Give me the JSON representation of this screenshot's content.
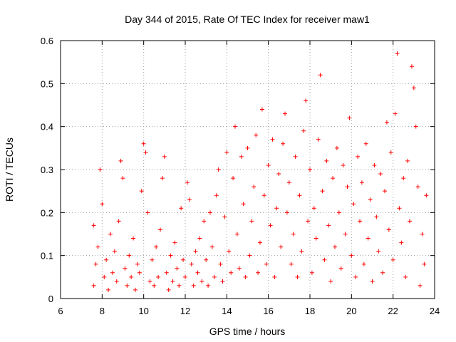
{
  "chart_data": {
    "type": "scatter",
    "title": "Day 344 of 2015, Rate Of TEC Index for receiver maw1",
    "xlabel": "GPS time / hours",
    "ylabel": "ROTI / TECUs",
    "xlim": [
      6,
      24
    ],
    "ylim": [
      0,
      0.6
    ],
    "xticks": [
      "6",
      "8",
      "10",
      "12",
      "14",
      "16",
      "18",
      "20",
      "22",
      "24"
    ],
    "yticks": [
      "0",
      "0.1",
      "0.2",
      "0.3",
      "0.4",
      "0.5",
      "0.6"
    ],
    "grid": true,
    "marker": "+",
    "marker_color": "#ff0000",
    "series": [
      {
        "points": [
          [
            7.6,
            0.03
          ],
          [
            7.6,
            0.17
          ],
          [
            7.7,
            0.08
          ],
          [
            7.8,
            0.12
          ],
          [
            7.9,
            0.3
          ],
          [
            8.0,
            0.22
          ],
          [
            8.1,
            0.05
          ],
          [
            8.2,
            0.09
          ],
          [
            8.3,
            0.02
          ],
          [
            8.4,
            0.15
          ],
          [
            8.5,
            0.06
          ],
          [
            8.6,
            0.11
          ],
          [
            8.7,
            0.04
          ],
          [
            8.8,
            0.18
          ],
          [
            8.9,
            0.32
          ],
          [
            9.0,
            0.28
          ],
          [
            9.1,
            0.07
          ],
          [
            9.2,
            0.03
          ],
          [
            9.3,
            0.1
          ],
          [
            9.4,
            0.05
          ],
          [
            9.5,
            0.14
          ],
          [
            9.6,
            0.02
          ],
          [
            9.7,
            0.08
          ],
          [
            9.8,
            0.06
          ],
          [
            9.9,
            0.25
          ],
          [
            10.0,
            0.36
          ],
          [
            10.1,
            0.34
          ],
          [
            10.2,
            0.2
          ],
          [
            10.3,
            0.04
          ],
          [
            10.4,
            0.09
          ],
          [
            10.5,
            0.03
          ],
          [
            10.6,
            0.12
          ],
          [
            10.7,
            0.05
          ],
          [
            10.8,
            0.16
          ],
          [
            10.9,
            0.28
          ],
          [
            11.0,
            0.33
          ],
          [
            11.1,
            0.06
          ],
          [
            11.2,
            0.02
          ],
          [
            11.3,
            0.1
          ],
          [
            11.4,
            0.04
          ],
          [
            11.5,
            0.13
          ],
          [
            11.6,
            0.07
          ],
          [
            11.7,
            0.03
          ],
          [
            11.8,
            0.21
          ],
          [
            11.9,
            0.09
          ],
          [
            12.0,
            0.05
          ],
          [
            12.1,
            0.27
          ],
          [
            12.2,
            0.23
          ],
          [
            12.3,
            0.08
          ],
          [
            12.4,
            0.03
          ],
          [
            12.5,
            0.11
          ],
          [
            12.6,
            0.06
          ],
          [
            12.7,
            0.14
          ],
          [
            12.8,
            0.04
          ],
          [
            12.9,
            0.18
          ],
          [
            13.0,
            0.09
          ],
          [
            13.1,
            0.03
          ],
          [
            13.2,
            0.2
          ],
          [
            13.3,
            0.12
          ],
          [
            13.4,
            0.05
          ],
          [
            13.5,
            0.24
          ],
          [
            13.6,
            0.3
          ],
          [
            13.7,
            0.08
          ],
          [
            13.8,
            0.04
          ],
          [
            13.9,
            0.19
          ],
          [
            14.0,
            0.34
          ],
          [
            14.1,
            0.11
          ],
          [
            14.2,
            0.06
          ],
          [
            14.3,
            0.28
          ],
          [
            14.4,
            0.4
          ],
          [
            14.5,
            0.15
          ],
          [
            14.6,
            0.07
          ],
          [
            14.7,
            0.33
          ],
          [
            14.8,
            0.22
          ],
          [
            14.9,
            0.05
          ],
          [
            15.0,
            0.35
          ],
          [
            15.1,
            0.1
          ],
          [
            15.2,
            0.18
          ],
          [
            15.3,
            0.26
          ],
          [
            15.4,
            0.38
          ],
          [
            15.5,
            0.06
          ],
          [
            15.6,
            0.13
          ],
          [
            15.7,
            0.44
          ],
          [
            15.8,
            0.24
          ],
          [
            15.9,
            0.08
          ],
          [
            16.0,
            0.31
          ],
          [
            16.1,
            0.17
          ],
          [
            16.2,
            0.37
          ],
          [
            16.3,
            0.05
          ],
          [
            16.4,
            0.21
          ],
          [
            16.5,
            0.29
          ],
          [
            16.6,
            0.12
          ],
          [
            16.7,
            0.36
          ],
          [
            16.8,
            0.43
          ],
          [
            16.9,
            0.2
          ],
          [
            17.0,
            0.27
          ],
          [
            17.1,
            0.08
          ],
          [
            17.2,
            0.15
          ],
          [
            17.3,
            0.33
          ],
          [
            17.4,
            0.05
          ],
          [
            17.5,
            0.24
          ],
          [
            17.6,
            0.11
          ],
          [
            17.7,
            0.39
          ],
          [
            17.8,
            0.46
          ],
          [
            17.9,
            0.18
          ],
          [
            18.0,
            0.3
          ],
          [
            18.1,
            0.06
          ],
          [
            18.2,
            0.21
          ],
          [
            18.3,
            0.14
          ],
          [
            18.4,
            0.37
          ],
          [
            18.5,
            0.52
          ],
          [
            18.6,
            0.25
          ],
          [
            18.7,
            0.09
          ],
          [
            18.8,
            0.32
          ],
          [
            18.9,
            0.17
          ],
          [
            19.0,
            0.04
          ],
          [
            19.1,
            0.28
          ],
          [
            19.2,
            0.12
          ],
          [
            19.3,
            0.35
          ],
          [
            19.4,
            0.2
          ],
          [
            19.5,
            0.07
          ],
          [
            19.6,
            0.31
          ],
          [
            19.7,
            0.15
          ],
          [
            19.8,
            0.26
          ],
          [
            19.9,
            0.42
          ],
          [
            20.0,
            0.1
          ],
          [
            20.1,
            0.22
          ],
          [
            20.2,
            0.05
          ],
          [
            20.3,
            0.33
          ],
          [
            20.4,
            0.18
          ],
          [
            20.5,
            0.27
          ],
          [
            20.6,
            0.08
          ],
          [
            20.7,
            0.36
          ],
          [
            20.8,
            0.14
          ],
          [
            20.9,
            0.23
          ],
          [
            21.0,
            0.04
          ],
          [
            21.1,
            0.31
          ],
          [
            21.2,
            0.19
          ],
          [
            21.3,
            0.11
          ],
          [
            21.4,
            0.29
          ],
          [
            21.5,
            0.06
          ],
          [
            21.6,
            0.25
          ],
          [
            21.7,
            0.41
          ],
          [
            21.8,
            0.16
          ],
          [
            21.9,
            0.34
          ],
          [
            22.0,
            0.09
          ],
          [
            22.1,
            0.43
          ],
          [
            22.2,
            0.57
          ],
          [
            22.3,
            0.21
          ],
          [
            22.4,
            0.13
          ],
          [
            22.5,
            0.28
          ],
          [
            22.6,
            0.05
          ],
          [
            22.7,
            0.32
          ],
          [
            22.8,
            0.18
          ],
          [
            22.9,
            0.54
          ],
          [
            23.0,
            0.49
          ],
          [
            23.1,
            0.4
          ],
          [
            23.2,
            0.26
          ],
          [
            23.3,
            0.03
          ],
          [
            23.4,
            0.15
          ],
          [
            23.5,
            0.08
          ],
          [
            23.6,
            0.24
          ]
        ]
      }
    ]
  }
}
